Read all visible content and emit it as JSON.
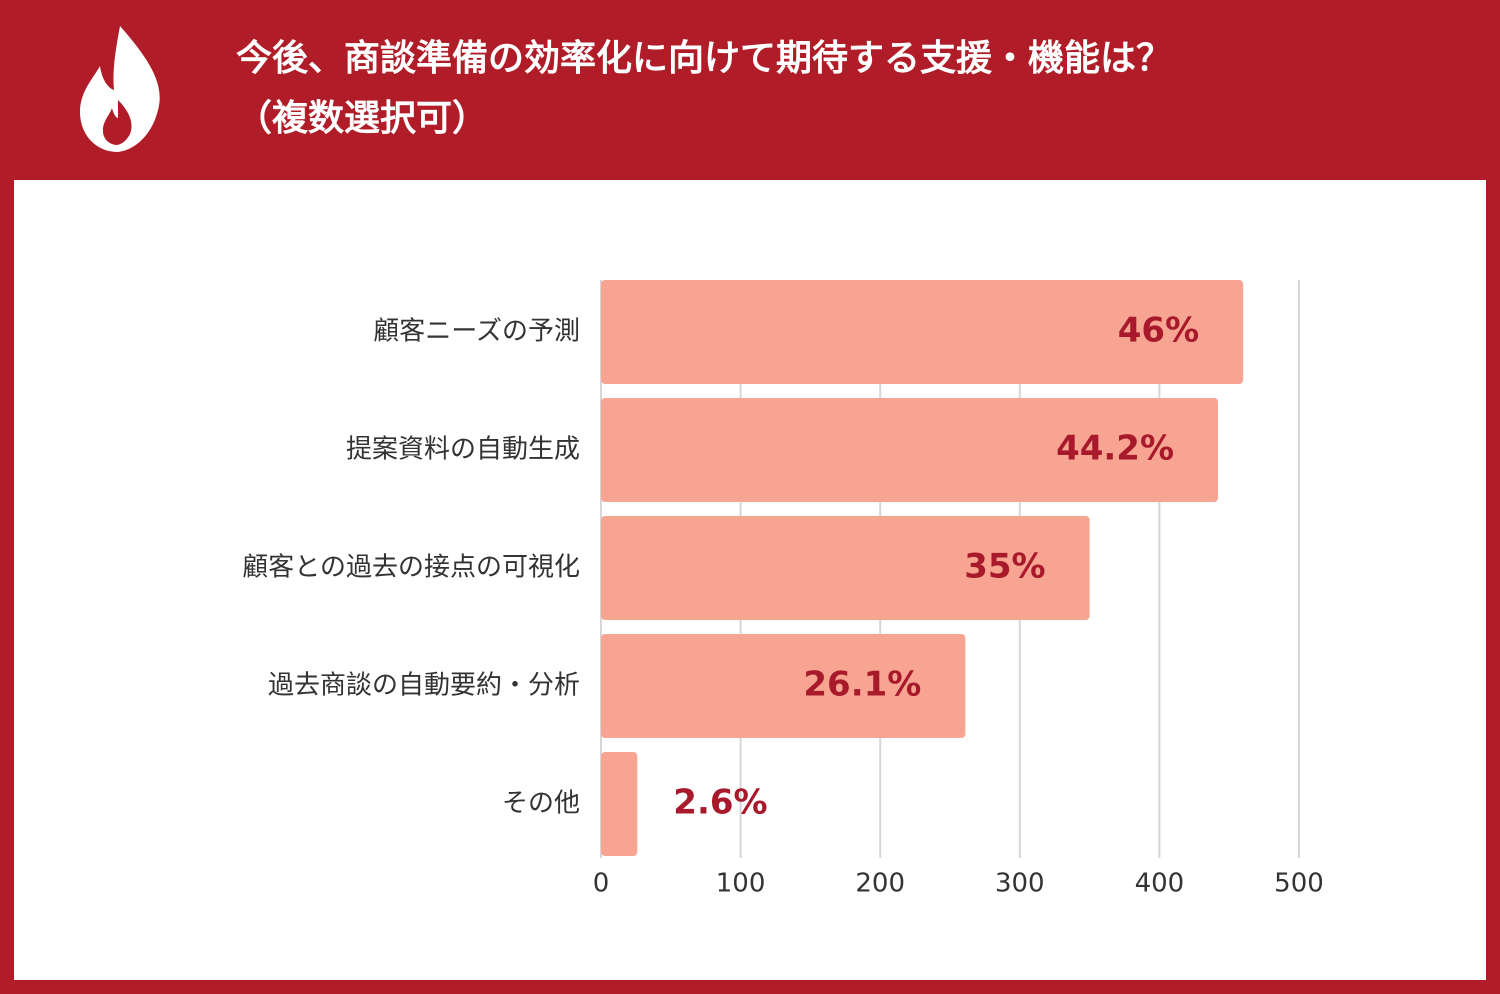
{
  "chart_data": {
    "type": "barh",
    "title": "今後、商談準備の効率化に向けて期待する支援・機能は？",
    "subtitle": "（複数選択可）",
    "categories": [
      "顧客ニーズの予測",
      "提案資料の自動生成",
      "顧客との過去の接点の可視化",
      "過去商談の自動要約・分析",
      "その他"
    ],
    "values": [
      460,
      442,
      350,
      261,
      26
    ],
    "value_labels": [
      "46%",
      "44.2%",
      "35%",
      "26.1%",
      "2.6%"
    ],
    "color": "#f7a592",
    "label_color": "#a8192b",
    "xlim": [
      0,
      500
    ],
    "xticks": [
      0,
      100,
      200,
      300,
      400,
      500
    ],
    "grid": true
  }
}
